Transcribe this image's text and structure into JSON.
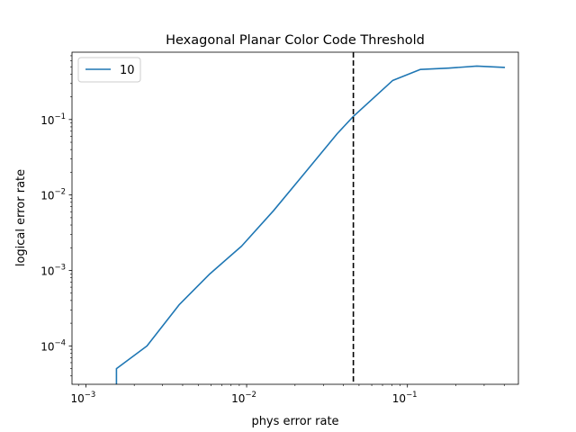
{
  "chart_data": {
    "type": "line",
    "title": "Hexagonal Planar Color Code Threshold",
    "xlabel": "phys error rate",
    "ylabel": "logical error rate",
    "xscale": "log",
    "yscale": "log",
    "xlim": [
      0.00082,
      0.49
    ],
    "ylim": [
      3.1e-05,
      0.78
    ],
    "xticks": [
      {
        "value": 0.001,
        "base": "10",
        "exp": "−3"
      },
      {
        "value": 0.01,
        "base": "10",
        "exp": "−2"
      },
      {
        "value": 0.1,
        "base": "10",
        "exp": "−1"
      }
    ],
    "yticks": [
      {
        "value": 0.0001,
        "base": "10",
        "exp": "−4"
      },
      {
        "value": 0.001,
        "base": "10",
        "exp": "−3"
      },
      {
        "value": 0.01,
        "base": "10",
        "exp": "−2"
      },
      {
        "value": 0.1,
        "base": "10",
        "exp": "−1"
      }
    ],
    "series": [
      {
        "name": "10",
        "color": "#1f77b4",
        "x": [
          0.00155,
          0.00155,
          0.0024,
          0.0038,
          0.0059,
          0.0093,
          0.0147,
          0.0232,
          0.0366,
          0.0461,
          0.0811,
          0.12,
          0.18,
          0.27,
          0.4
        ],
        "y": [
          2.5e-05,
          5e-05,
          0.0001,
          0.00035,
          0.0009,
          0.0021,
          0.0062,
          0.02,
          0.065,
          0.11,
          0.33,
          0.46,
          0.48,
          0.51,
          0.49
        ]
      }
    ],
    "threshold": {
      "x": 0.0461,
      "color": "#000000",
      "style": "dashed"
    },
    "legend": {
      "placement": "top-left"
    },
    "grid": false
  }
}
